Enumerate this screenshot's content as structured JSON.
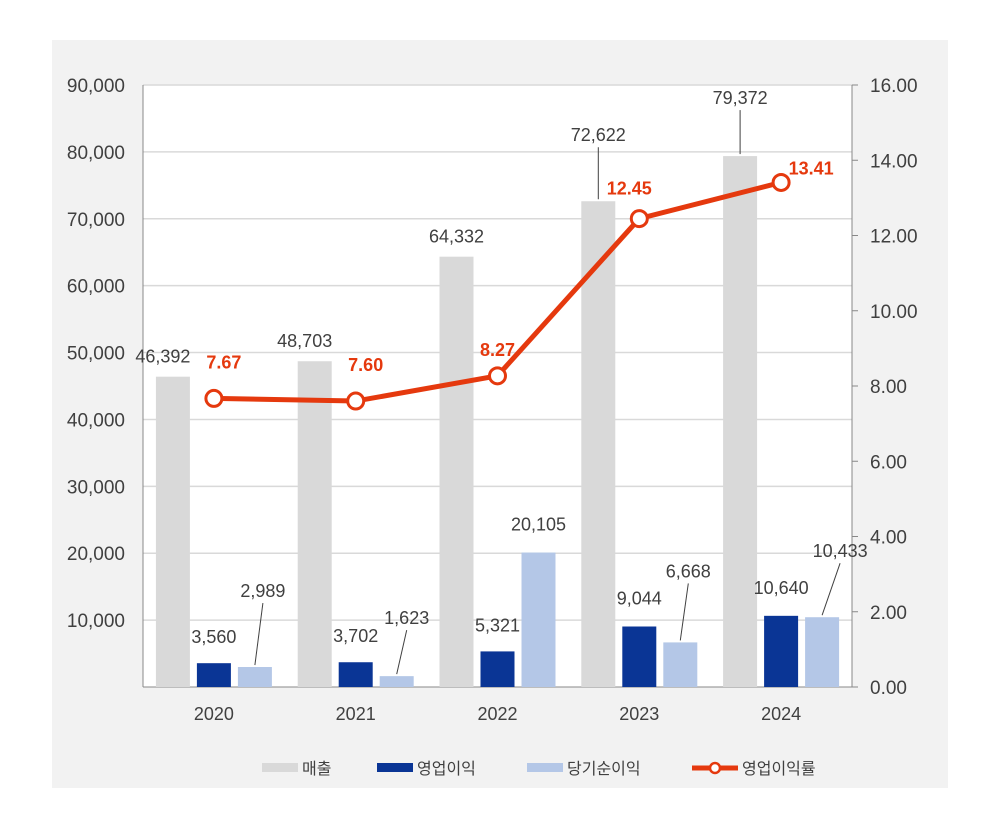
{
  "chart_data": {
    "type": "bar+line",
    "categories": [
      "2020",
      "2021",
      "2022",
      "2023",
      "2024"
    ],
    "series": [
      {
        "name": "매출",
        "type": "bar",
        "axis": "left",
        "color": "#d9d9d9",
        "values": [
          46392,
          48703,
          64332,
          72622,
          79372
        ]
      },
      {
        "name": "영업이익",
        "type": "bar",
        "axis": "left",
        "color": "#0a3595",
        "values": [
          3560,
          3702,
          5321,
          9044,
          10640
        ]
      },
      {
        "name": "당기순이익",
        "type": "bar",
        "axis": "left",
        "color": "#b4c7e7",
        "values": [
          2989,
          1623,
          20105,
          6668,
          10433
        ]
      },
      {
        "name": "영업이익률",
        "type": "line",
        "axis": "right",
        "color": "#e5390e",
        "values": [
          7.67,
          7.6,
          8.27,
          12.45,
          13.41
        ]
      }
    ],
    "data_labels": {
      "매출": [
        "46,392",
        "48,703",
        "64,332",
        "72,622",
        "79,372"
      ],
      "영업이익": [
        "3,560",
        "3,702",
        "5,321",
        "9,044",
        "10,640"
      ],
      "당기순이익": [
        "2,989",
        "1,623",
        "20,105",
        "6,668",
        "10,433"
      ],
      "영업이익률": [
        "7.67",
        "7.60",
        "8.27",
        "12.45",
        "13.41"
      ]
    },
    "y_left": {
      "min": 0,
      "max": 90000,
      "ticks": [
        "10,000",
        "20,000",
        "30,000",
        "40,000",
        "50,000",
        "60,000",
        "70,000",
        "80,000",
        "90,000"
      ]
    },
    "y_right": {
      "min": 0,
      "max": 16,
      "ticks": [
        "0.00",
        "2.00",
        "4.00",
        "6.00",
        "8.00",
        "10.00",
        "12.00",
        "14.00",
        "16.00"
      ]
    },
    "grid": true,
    "legend": "bottom",
    "background": "#f2f2f2"
  }
}
